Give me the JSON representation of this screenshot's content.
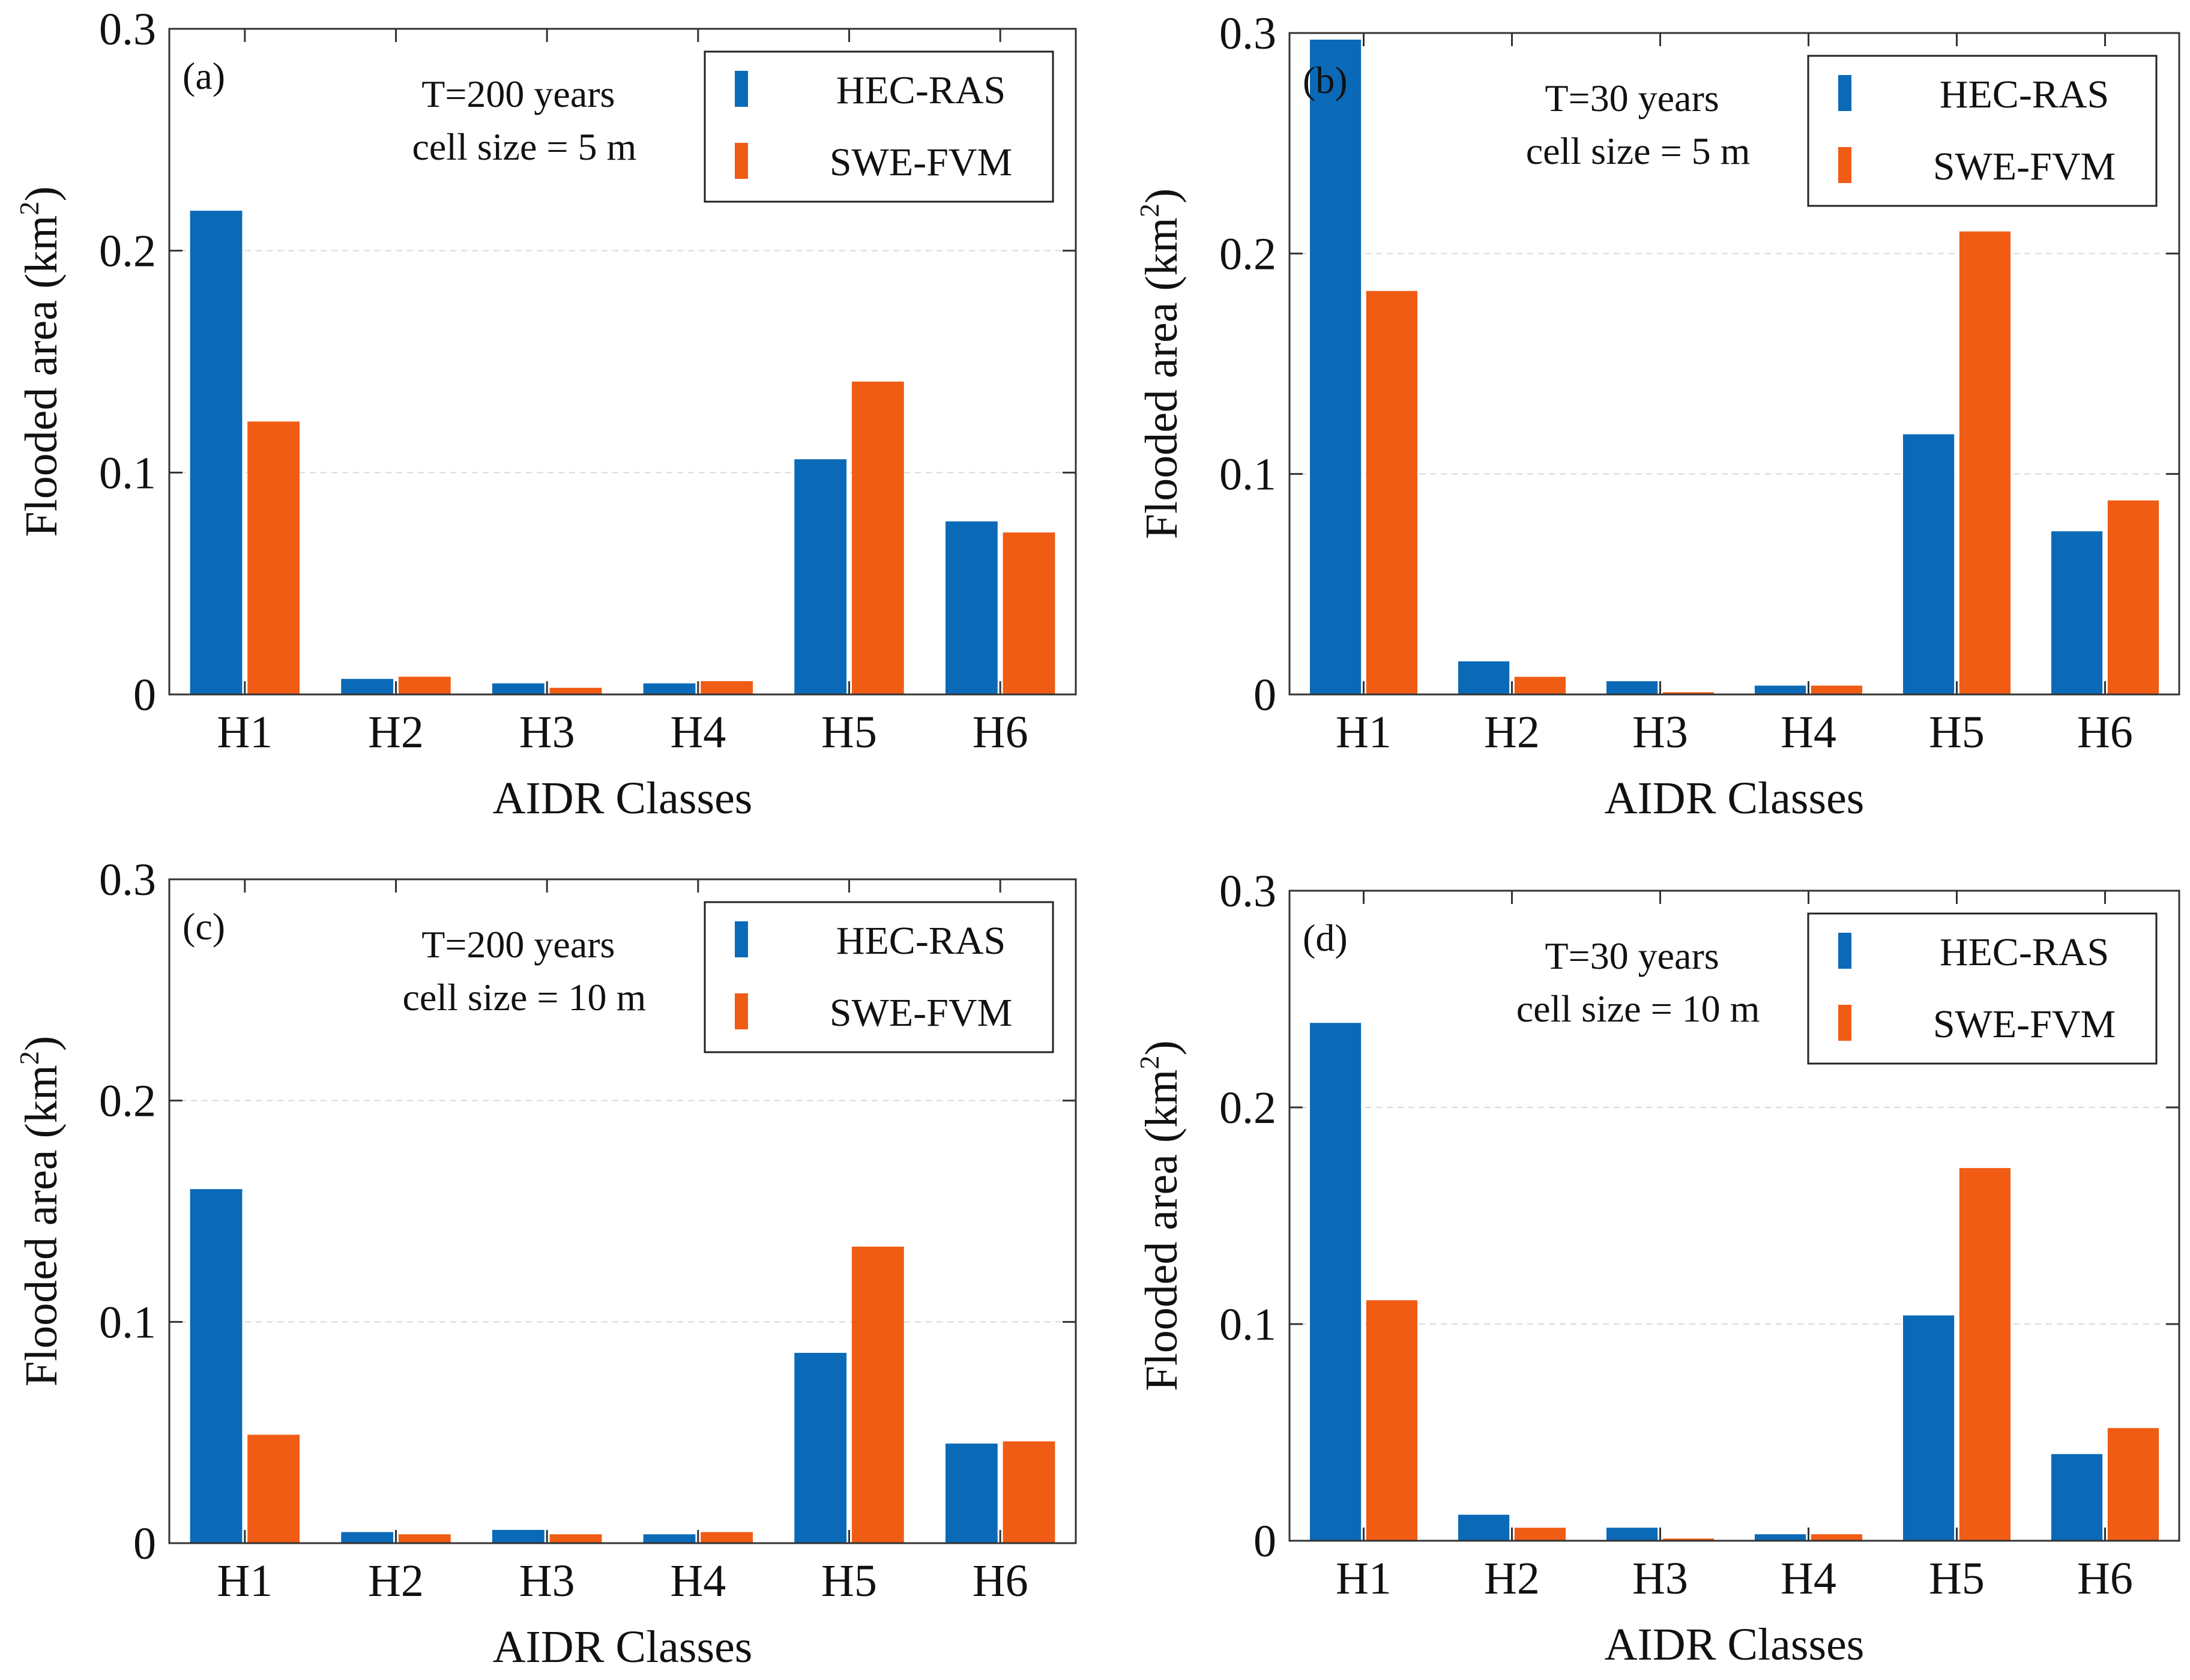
{
  "figure": {
    "colors": {
      "HEC-RAS": "#0a6ab8",
      "SWE-FVM": "#f05c14"
    }
  },
  "chart_data": [
    {
      "type": "bar",
      "panel": "(a)",
      "annotation": [
        "T=200 years",
        "cell size = 5 m"
      ],
      "categories": [
        "H1",
        "H2",
        "H3",
        "H4",
        "H5",
        "H6"
      ],
      "series": [
        {
          "name": "HEC-RAS",
          "values": [
            0.218,
            0.007,
            0.005,
            0.005,
            0.106,
            0.078
          ]
        },
        {
          "name": "SWE-FVM",
          "values": [
            0.123,
            0.008,
            0.003,
            0.006,
            0.141,
            0.073
          ]
        }
      ],
      "xlabel": "AIDR Classes",
      "ylabel": "Flooded area (km",
      "ylabel_sup": "2",
      "ylabel_end": ")",
      "ylim": [
        0,
        0.3
      ],
      "yticks": [
        0,
        0.1,
        0.2,
        0.3
      ],
      "ytick_labels": [
        "0",
        "0.1",
        "0.2",
        "0.3"
      ],
      "legend": [
        "HEC-RAS",
        "SWE-FVM"
      ],
      "legend_position": "top-right",
      "grid": true
    },
    {
      "type": "bar",
      "panel": "(b)",
      "annotation": [
        "T=30 years",
        "cell size = 5 m"
      ],
      "categories": [
        "H1",
        "H2",
        "H3",
        "H4",
        "H5",
        "H6"
      ],
      "series": [
        {
          "name": "HEC-RAS",
          "values": [
            0.297,
            0.015,
            0.006,
            0.004,
            0.118,
            0.074
          ]
        },
        {
          "name": "SWE-FVM",
          "values": [
            0.183,
            0.008,
            0.001,
            0.004,
            0.21,
            0.088
          ]
        }
      ],
      "xlabel": "AIDR Classes",
      "ylabel": "Flooded area (km",
      "ylabel_sup": "2",
      "ylabel_end": ")",
      "ylim": [
        0,
        0.3
      ],
      "yticks": [
        0,
        0.1,
        0.2,
        0.3
      ],
      "ytick_labels": [
        "0",
        "0.1",
        "0.2",
        "0.3"
      ],
      "legend": [
        "HEC-RAS",
        "SWE-FVM"
      ],
      "legend_position": "top-right",
      "grid": true
    },
    {
      "type": "bar",
      "panel": "(c)",
      "annotation": [
        "T=200 years",
        "cell size = 10 m"
      ],
      "categories": [
        "H1",
        "H2",
        "H3",
        "H4",
        "H5",
        "H6"
      ],
      "series": [
        {
          "name": "HEC-RAS",
          "values": [
            0.16,
            0.005,
            0.006,
            0.004,
            0.086,
            0.045
          ]
        },
        {
          "name": "SWE-FVM",
          "values": [
            0.049,
            0.004,
            0.004,
            0.005,
            0.134,
            0.046
          ]
        }
      ],
      "xlabel": "AIDR Classes",
      "ylabel": "Flooded area (km",
      "ylabel_sup": "2",
      "ylabel_end": ")",
      "ylim": [
        0,
        0.3
      ],
      "yticks": [
        0,
        0.1,
        0.2,
        0.3
      ],
      "ytick_labels": [
        "0",
        "0.1",
        "0.2",
        "0.3"
      ],
      "legend": [
        "HEC-RAS",
        "SWE-FVM"
      ],
      "legend_position": "top-right",
      "grid": true
    },
    {
      "type": "bar",
      "panel": "(d)",
      "annotation": [
        "T=30 years",
        "cell size = 10 m"
      ],
      "categories": [
        "H1",
        "H2",
        "H3",
        "H4",
        "H5",
        "H6"
      ],
      "series": [
        {
          "name": "HEC-RAS",
          "values": [
            0.239,
            0.012,
            0.006,
            0.003,
            0.104,
            0.04
          ]
        },
        {
          "name": "SWE-FVM",
          "values": [
            0.111,
            0.006,
            0.001,
            0.003,
            0.172,
            0.052
          ]
        }
      ],
      "xlabel": "AIDR Classes",
      "ylabel": "Flooded area (km",
      "ylabel_sup": "2",
      "ylabel_end": ")",
      "ylim": [
        0,
        0.3
      ],
      "yticks": [
        0,
        0.1,
        0.2,
        0.3
      ],
      "ytick_labels": [
        "0",
        "0.1",
        "0.2",
        "0.3"
      ],
      "legend": [
        "HEC-RAS",
        "SWE-FVM"
      ],
      "legend_position": "top-right",
      "grid": true
    }
  ]
}
